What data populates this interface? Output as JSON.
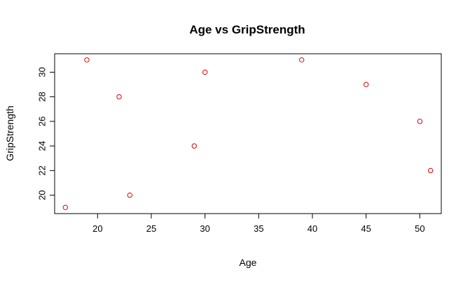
{
  "chart_data": {
    "type": "scatter",
    "title": "Age vs GripStrength",
    "xlabel": "Age",
    "ylabel": "GripStrength",
    "xlim": [
      16.0,
      52.0
    ],
    "ylim": [
      18.5,
      31.5
    ],
    "xticks": [
      20,
      25,
      30,
      35,
      40,
      45,
      50
    ],
    "yticks": [
      20,
      22,
      24,
      26,
      28,
      30
    ],
    "xtick_labels": [
      "20",
      "25",
      "30",
      "35",
      "40",
      "45",
      "50"
    ],
    "ytick_labels": [
      "20",
      "22",
      "24",
      "26",
      "28",
      "30"
    ],
    "grid": false,
    "legend": "none",
    "point_color": "#e00000",
    "points": [
      {
        "x": 17,
        "y": 19
      },
      {
        "x": 19,
        "y": 31
      },
      {
        "x": 22,
        "y": 28
      },
      {
        "x": 23,
        "y": 20
      },
      {
        "x": 29,
        "y": 24
      },
      {
        "x": 30,
        "y": 30
      },
      {
        "x": 39,
        "y": 31
      },
      {
        "x": 45,
        "y": 29
      },
      {
        "x": 50,
        "y": 26
      },
      {
        "x": 51,
        "y": 22
      }
    ]
  }
}
